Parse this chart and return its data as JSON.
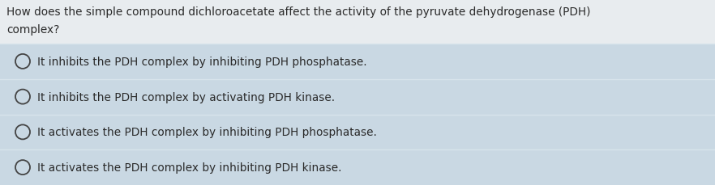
{
  "question_line1": "How does the simple compound dichloroacetate affect the activity of the pyruvate dehydrogenase (PDH)",
  "question_line2": "complex?",
  "options": [
    "It inhibits the PDH complex by inhibiting PDH phosphatase.",
    "It inhibits the PDH complex by activating PDH kinase.",
    "It activates the PDH complex by inhibiting PDH phosphatase.",
    "It activates the PDH complex by inhibiting PDH kinase."
  ],
  "question_bg": "#e8ecef",
  "option_bg": "#c9d8e3",
  "separator_color": "#d8e4ec",
  "text_color": "#2a2a2a",
  "question_text_color": "#2a2a2a",
  "font_size_question": 9.8,
  "font_size_option": 9.8,
  "radio_color": "#444444",
  "fig_width": 8.82,
  "fig_height": 2.3,
  "dpi": 100
}
